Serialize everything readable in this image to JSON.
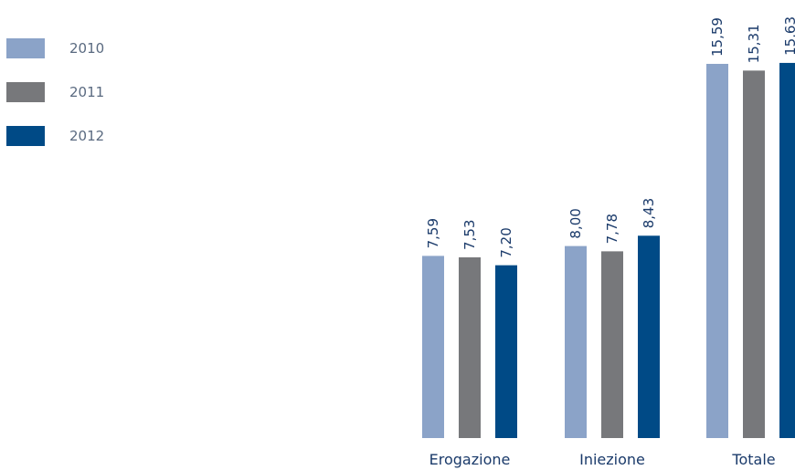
{
  "chart_data": {
    "type": "bar",
    "title": "",
    "xlabel": "",
    "ylabel": "",
    "ylim": [
      0,
      16
    ],
    "grid": false,
    "legend_position": "top-left",
    "categories": [
      "Erogazione",
      "Iniezione",
      "Totale"
    ],
    "series": [
      {
        "name": "2010",
        "color": "#8ba3c8",
        "values": [
          7.59,
          8.0,
          15.59
        ],
        "labels": [
          "7,59",
          "8,00",
          "15,59"
        ]
      },
      {
        "name": "2011",
        "color": "#77787b",
        "values": [
          7.53,
          7.78,
          15.31
        ],
        "labels": [
          "7,53",
          "7,78",
          "15,31"
        ]
      },
      {
        "name": "2012",
        "color": "#004a86",
        "values": [
          7.2,
          8.43,
          15.63
        ],
        "labels": [
          "7,20",
          "8,43",
          "15,63"
        ]
      }
    ]
  }
}
